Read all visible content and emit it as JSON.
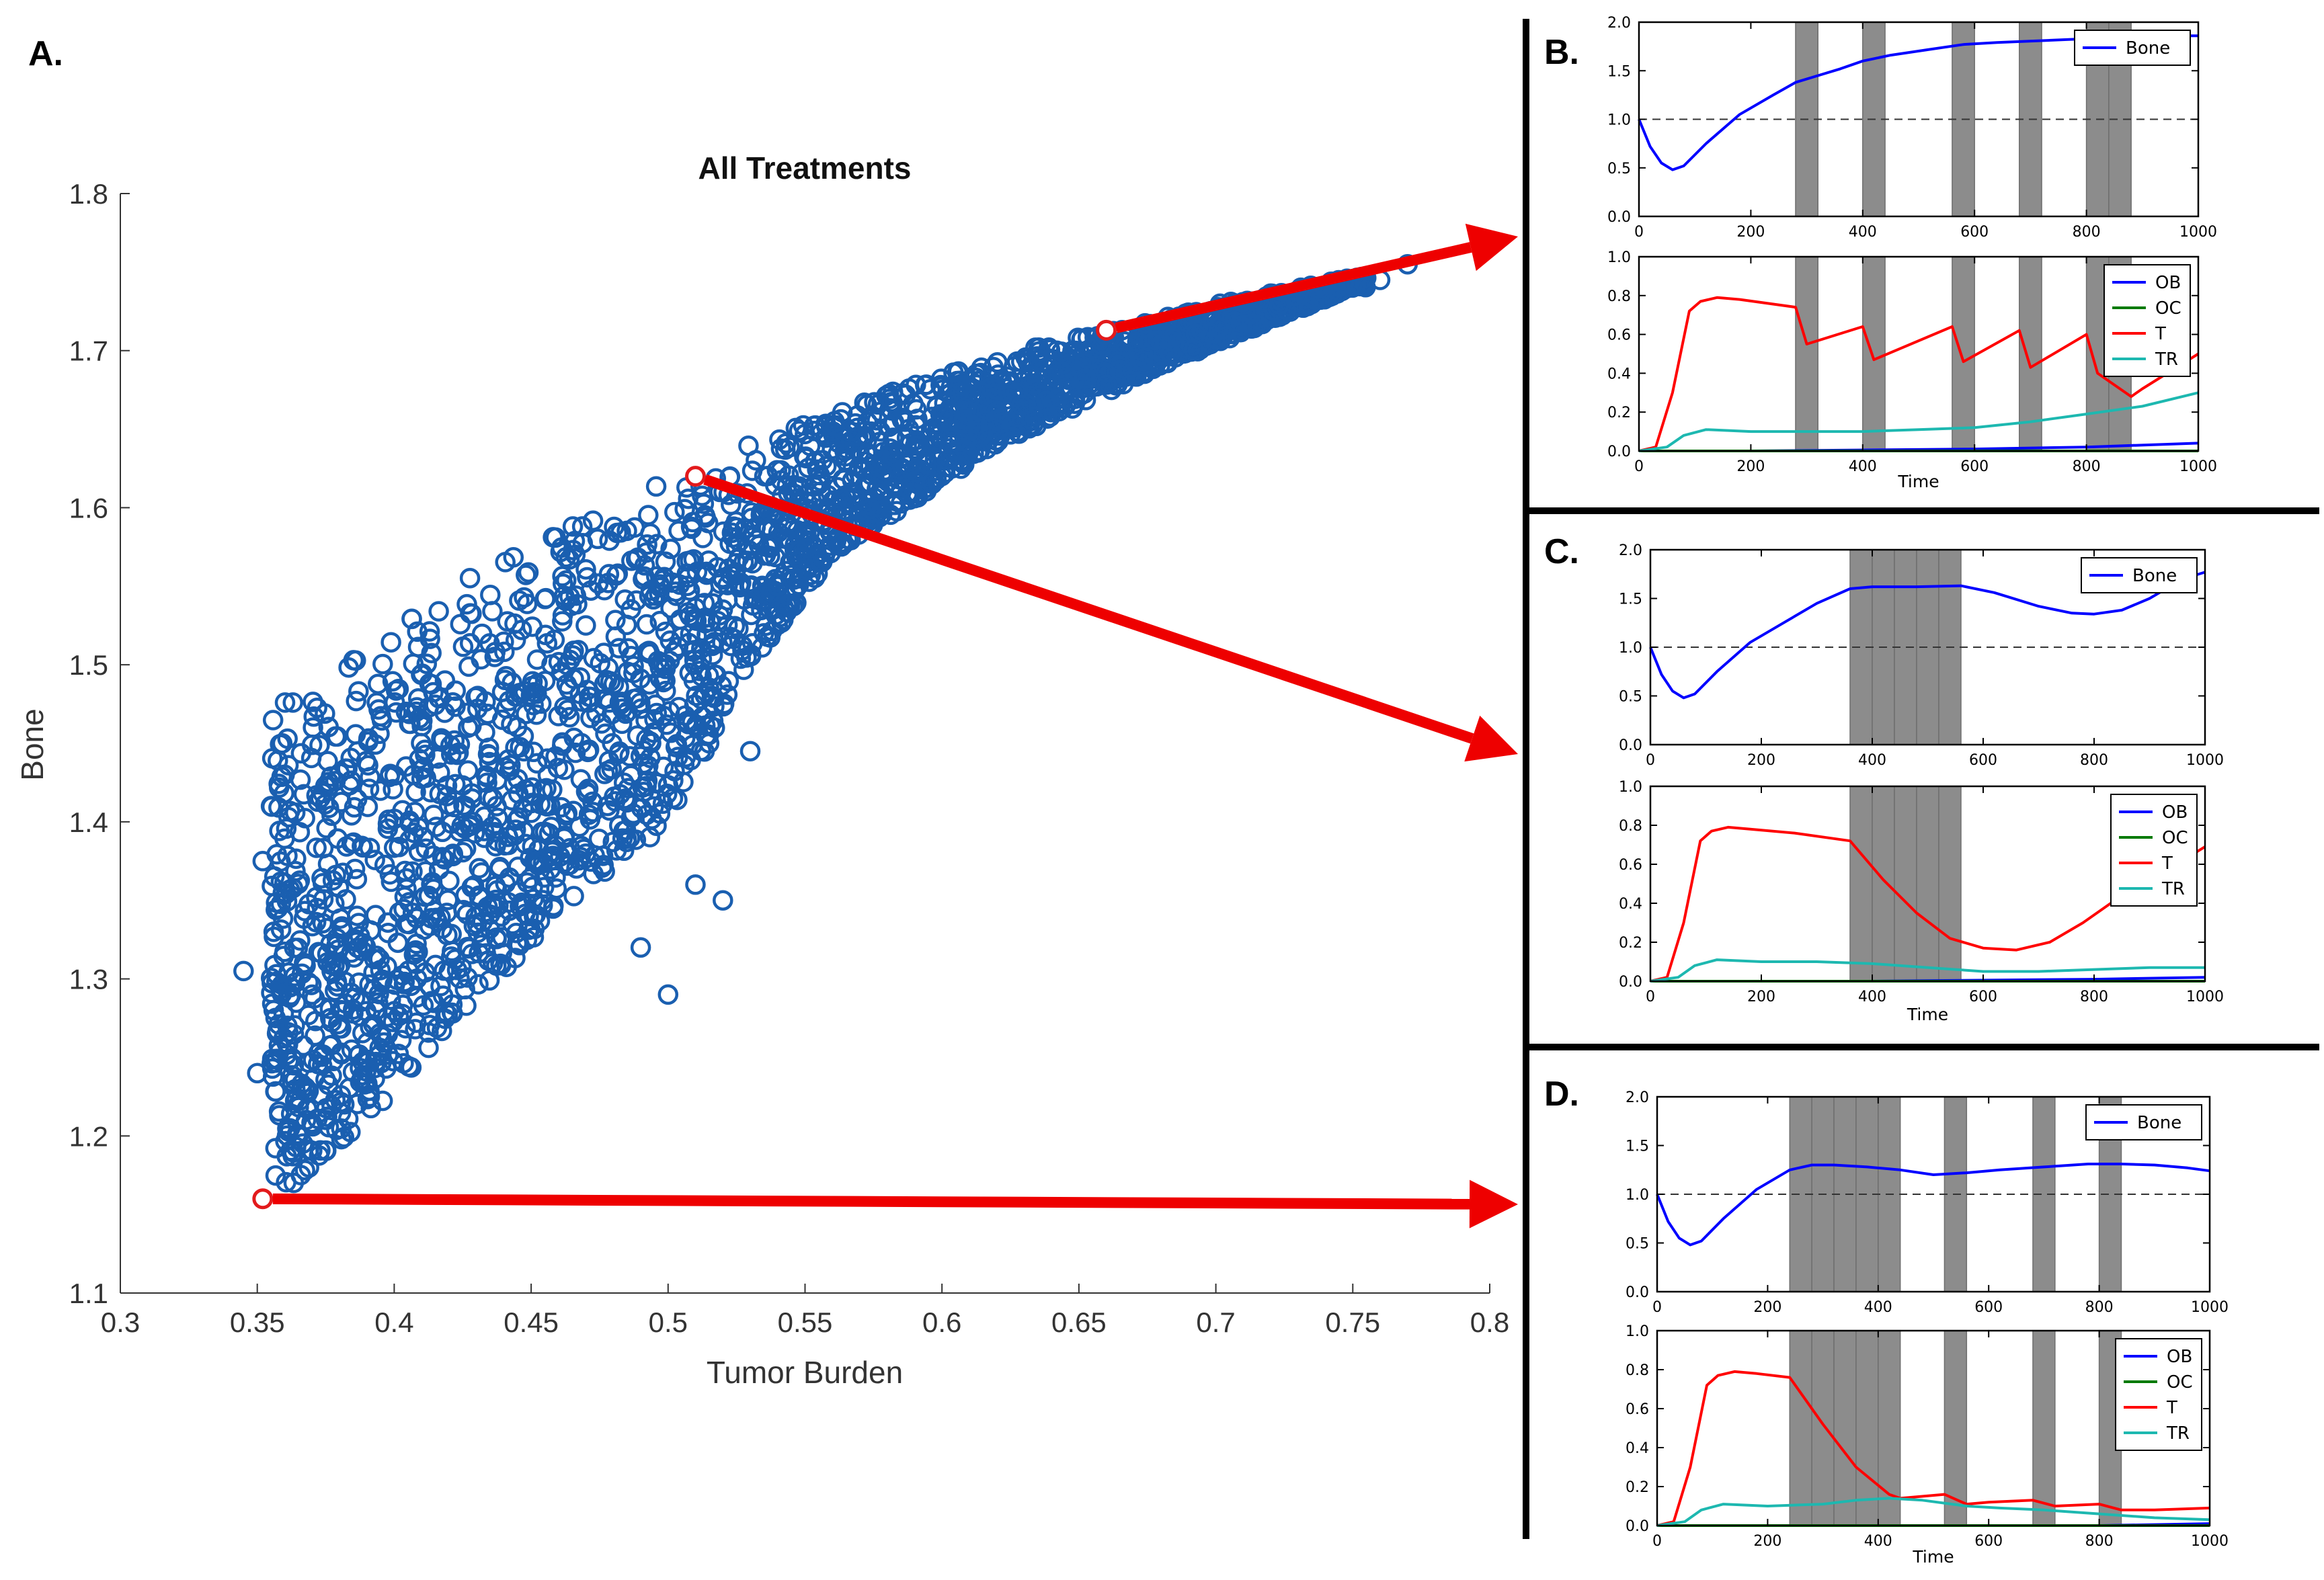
{
  "panels": {
    "A": {
      "label": "A.",
      "title": "All Treatments",
      "xlabel": "Tumor Burden",
      "ylabel": "Bone",
      "xlim": [
        0.3,
        0.8
      ],
      "ylim": [
        1.1,
        1.8
      ],
      "xticks": [
        "0.3",
        "0.35",
        "0.4",
        "0.45",
        "0.5",
        "0.55",
        "0.6",
        "0.65",
        "0.7",
        "0.75",
        "0.8"
      ],
      "yticks": [
        "1.1",
        "1.2",
        "1.3",
        "1.4",
        "1.5",
        "1.6",
        "1.7",
        "1.8"
      ]
    },
    "B": {
      "label": "B."
    },
    "C": {
      "label": "C."
    },
    "D": {
      "label": "D."
    }
  },
  "subplot_ticks": {
    "time_ticks": [
      "0",
      "200",
      "400",
      "600",
      "800",
      "1000"
    ],
    "bone_yticks": [
      "0.0",
      "0.5",
      "1.0",
      "1.5",
      "2.0"
    ],
    "cell_yticks": [
      "0.0",
      "0.2",
      "0.4",
      "0.6",
      "0.8",
      "1.0"
    ],
    "xlabel": "Time"
  },
  "legend": {
    "bone": "Bone",
    "ob": "OB",
    "oc": "OC",
    "t": "T",
    "tr": "TR"
  },
  "colors": {
    "scatter": "#1a5fb0",
    "highlight": "#e31a1c",
    "arrow": "#ee0000",
    "bone": "#0000ff",
    "ob": "#0000ff",
    "oc": "#007a00",
    "t": "#ff0000",
    "tr": "#1db8b0",
    "treatment": "#8c8c8c"
  },
  "chart_data": [
    {
      "id": "A",
      "type": "scatter",
      "title": "All Treatments",
      "xlabel": "Tumor Burden",
      "ylabel": "Bone",
      "xlim": [
        0.3,
        0.8
      ],
      "ylim": [
        1.1,
        1.8
      ],
      "grid": false,
      "envelope_upper": [
        [
          0.37,
          1.48
        ],
        [
          0.4,
          1.53
        ],
        [
          0.45,
          1.58
        ],
        [
          0.5,
          1.62
        ],
        [
          0.55,
          1.655
        ],
        [
          0.6,
          1.685
        ],
        [
          0.65,
          1.71
        ],
        [
          0.7,
          1.73
        ],
        [
          0.76,
          1.75
        ]
      ],
      "envelope_lower": [
        [
          0.355,
          1.16
        ],
        [
          0.38,
          1.19
        ],
        [
          0.42,
          1.27
        ],
        [
          0.46,
          1.34
        ],
        [
          0.5,
          1.4
        ],
        [
          0.53,
          1.5
        ],
        [
          0.56,
          1.57
        ],
        [
          0.62,
          1.64
        ],
        [
          0.68,
          1.69
        ],
        [
          0.75,
          1.74
        ]
      ],
      "outliers": [
        [
          0.345,
          1.305
        ],
        [
          0.35,
          1.24
        ],
        [
          0.352,
          1.375
        ],
        [
          0.355,
          1.41
        ],
        [
          0.356,
          1.33
        ],
        [
          0.36,
          1.43
        ],
        [
          0.365,
          1.2
        ],
        [
          0.77,
          1.755
        ],
        [
          0.76,
          1.745
        ],
        [
          0.52,
          1.35
        ],
        [
          0.53,
          1.445
        ],
        [
          0.54,
          1.55
        ],
        [
          0.545,
          1.6
        ],
        [
          0.535,
          1.52
        ],
        [
          0.515,
          1.45
        ],
        [
          0.5,
          1.29
        ],
        [
          0.49,
          1.32
        ],
        [
          0.51,
          1.36
        ]
      ],
      "highlighted_points": [
        {
          "x": 0.66,
          "y": 1.713,
          "linked_panel": "B"
        },
        {
          "x": 0.51,
          "y": 1.62,
          "linked_panel": "C"
        },
        {
          "x": 0.352,
          "y": 1.16,
          "linked_panel": "D"
        }
      ]
    },
    {
      "id": "B",
      "type": "line",
      "subplots": [
        {
          "name": "bone",
          "xlim": [
            0,
            1000
          ],
          "ylim": [
            0,
            2.0
          ],
          "reference_line": 1.0,
          "series": [
            {
              "name": "Bone",
              "x": [
                0,
                20,
                40,
                60,
                80,
                120,
                180,
                240,
                280,
                320,
                360,
                400,
                450,
                520,
                580,
                640,
                720,
                800,
                880,
                960,
                1000
              ],
              "y": [
                1.0,
                0.72,
                0.55,
                0.48,
                0.52,
                0.75,
                1.05,
                1.25,
                1.38,
                1.45,
                1.52,
                1.6,
                1.66,
                1.72,
                1.77,
                1.79,
                1.81,
                1.83,
                1.85,
                1.86,
                1.86
              ]
            }
          ]
        },
        {
          "name": "cells",
          "xlim": [
            0,
            1000
          ],
          "ylim": [
            0,
            1.0
          ],
          "series": [
            {
              "name": "OB",
              "x": [
                0,
                200,
                400,
                600,
                800,
                1000
              ],
              "y": [
                0.0,
                0.0,
                0.005,
                0.01,
                0.02,
                0.04
              ]
            },
            {
              "name": "OC",
              "x": [
                0,
                200,
                400,
                600,
                800,
                1000
              ],
              "y": [
                0.0,
                0.0,
                0.0,
                0.0,
                0.0,
                0.0
              ]
            },
            {
              "name": "T",
              "x": [
                0,
                30,
                60,
                90,
                110,
                140,
                180,
                280,
                300,
                400,
                420,
                560,
                580,
                680,
                700,
                800,
                820,
                880,
                900,
                1000
              ],
              "y": [
                0.0,
                0.02,
                0.3,
                0.72,
                0.77,
                0.79,
                0.78,
                0.74,
                0.55,
                0.64,
                0.47,
                0.64,
                0.46,
                0.62,
                0.43,
                0.6,
                0.4,
                0.28,
                0.32,
                0.5
              ]
            },
            {
              "name": "TR",
              "x": [
                0,
                50,
                80,
                120,
                200,
                300,
                400,
                500,
                600,
                700,
                800,
                900,
                1000
              ],
              "y": [
                0.0,
                0.02,
                0.08,
                0.11,
                0.1,
                0.1,
                0.1,
                0.11,
                0.12,
                0.15,
                0.19,
                0.23,
                0.3
              ]
            }
          ]
        }
      ],
      "treatment_windows": [
        [
          280,
          320
        ],
        [
          400,
          440
        ],
        [
          560,
          600
        ],
        [
          680,
          720
        ],
        [
          800,
          840
        ],
        [
          840,
          880
        ]
      ]
    },
    {
      "id": "C",
      "type": "line",
      "subplots": [
        {
          "name": "bone",
          "xlim": [
            0,
            1000
          ],
          "ylim": [
            0,
            2.0
          ],
          "reference_line": 1.0,
          "series": [
            {
              "name": "Bone",
              "x": [
                0,
                20,
                40,
                60,
                80,
                120,
                180,
                240,
                300,
                360,
                400,
                480,
                560,
                620,
                700,
                760,
                800,
                850,
                900,
                960,
                1000
              ],
              "y": [
                1.0,
                0.72,
                0.55,
                0.48,
                0.52,
                0.75,
                1.05,
                1.25,
                1.45,
                1.6,
                1.62,
                1.62,
                1.63,
                1.56,
                1.42,
                1.35,
                1.34,
                1.38,
                1.5,
                1.7,
                1.77
              ]
            }
          ]
        },
        {
          "name": "cells",
          "xlim": [
            0,
            1000
          ],
          "ylim": [
            0,
            1.0
          ],
          "series": [
            {
              "name": "OB",
              "x": [
                0,
                200,
                400,
                600,
                800,
                1000
              ],
              "y": [
                0.0,
                0.0,
                0.0,
                0.005,
                0.01,
                0.02
              ]
            },
            {
              "name": "OC",
              "x": [
                0,
                200,
                400,
                600,
                800,
                1000
              ],
              "y": [
                0.0,
                0.0,
                0.0,
                0.0,
                0.0,
                0.0
              ]
            },
            {
              "name": "T",
              "x": [
                0,
                30,
                60,
                90,
                110,
                140,
                180,
                260,
                360,
                420,
                480,
                540,
                600,
                660,
                720,
                780,
                840,
                900,
                960,
                1000
              ],
              "y": [
                0.0,
                0.02,
                0.3,
                0.72,
                0.77,
                0.79,
                0.78,
                0.76,
                0.72,
                0.52,
                0.35,
                0.22,
                0.17,
                0.16,
                0.2,
                0.3,
                0.42,
                0.52,
                0.62,
                0.69
              ]
            },
            {
              "name": "TR",
              "x": [
                0,
                50,
                80,
                120,
                200,
                300,
                400,
                500,
                600,
                700,
                800,
                900,
                1000
              ],
              "y": [
                0.0,
                0.02,
                0.08,
                0.11,
                0.1,
                0.1,
                0.09,
                0.07,
                0.05,
                0.05,
                0.06,
                0.07,
                0.07
              ]
            }
          ]
        }
      ],
      "treatment_windows": [
        [
          360,
          400
        ],
        [
          400,
          440
        ],
        [
          440,
          480
        ],
        [
          480,
          520
        ],
        [
          520,
          560
        ]
      ]
    },
    {
      "id": "D",
      "type": "line",
      "subplots": [
        {
          "name": "bone",
          "xlim": [
            0,
            1000
          ],
          "ylim": [
            0,
            2.0
          ],
          "reference_line": 1.0,
          "series": [
            {
              "name": "Bone",
              "x": [
                0,
                20,
                40,
                60,
                80,
                120,
                180,
                240,
                280,
                320,
                380,
                440,
                500,
                560,
                620,
                700,
                780,
                840,
                900,
                960,
                1000
              ],
              "y": [
                1.0,
                0.72,
                0.55,
                0.48,
                0.52,
                0.75,
                1.05,
                1.25,
                1.3,
                1.3,
                1.28,
                1.25,
                1.2,
                1.22,
                1.25,
                1.28,
                1.31,
                1.31,
                1.3,
                1.27,
                1.24
              ]
            }
          ]
        },
        {
          "name": "cells",
          "xlim": [
            0,
            1000
          ],
          "ylim": [
            0,
            1.0
          ],
          "series": [
            {
              "name": "OB",
              "x": [
                0,
                200,
                400,
                600,
                800,
                1000
              ],
              "y": [
                0.0,
                0.0,
                0.0,
                0.0,
                0.0,
                0.01
              ]
            },
            {
              "name": "OC",
              "x": [
                0,
                200,
                400,
                600,
                800,
                1000
              ],
              "y": [
                0.0,
                0.0,
                0.0,
                0.0,
                0.0,
                0.0
              ]
            },
            {
              "name": "T",
              "x": [
                0,
                30,
                60,
                90,
                110,
                140,
                180,
                240,
                300,
                360,
                420,
                440,
                520,
                560,
                600,
                680,
                720,
                800,
                840,
                900,
                1000
              ],
              "y": [
                0.0,
                0.02,
                0.3,
                0.72,
                0.77,
                0.79,
                0.78,
                0.76,
                0.52,
                0.3,
                0.16,
                0.14,
                0.16,
                0.11,
                0.12,
                0.13,
                0.1,
                0.11,
                0.08,
                0.08,
                0.09
              ]
            },
            {
              "name": "TR",
              "x": [
                0,
                50,
                80,
                120,
                200,
                300,
                360,
                420,
                480,
                560,
                620,
                700,
                800,
                900,
                1000
              ],
              "y": [
                0.0,
                0.02,
                0.08,
                0.11,
                0.1,
                0.11,
                0.13,
                0.14,
                0.13,
                0.1,
                0.09,
                0.08,
                0.06,
                0.04,
                0.03
              ]
            }
          ]
        }
      ],
      "treatment_windows": [
        [
          240,
          280
        ],
        [
          280,
          320
        ],
        [
          320,
          360
        ],
        [
          360,
          400
        ],
        [
          400,
          440
        ],
        [
          520,
          560
        ],
        [
          680,
          720
        ],
        [
          800,
          840
        ]
      ]
    }
  ]
}
